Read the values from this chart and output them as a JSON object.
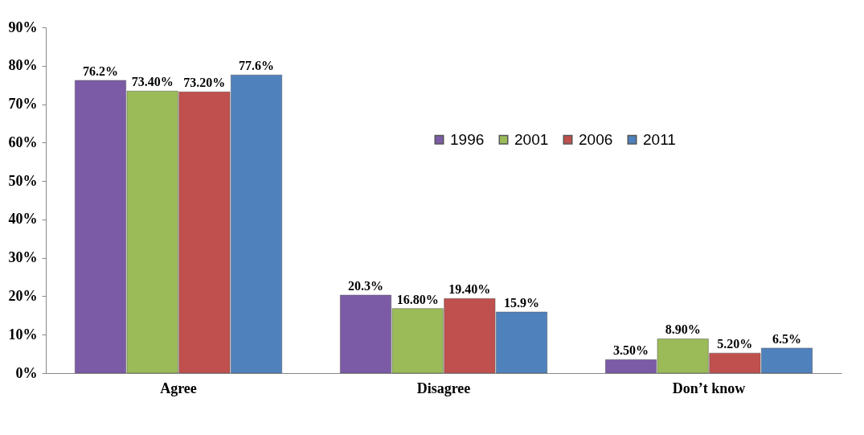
{
  "chart_data": {
    "type": "bar",
    "categories": [
      "Agree",
      "Disagree",
      "Don’t know"
    ],
    "series": [
      {
        "name": "1996",
        "color": "#7b5ba6",
        "values": [
          76.2,
          20.3,
          3.5
        ],
        "value_labels": [
          "76.2%",
          "20.3%",
          "3.50%"
        ]
      },
      {
        "name": "2001",
        "color": "#9bbb59",
        "values": [
          73.4,
          16.8,
          8.9
        ],
        "value_labels": [
          "73.40%",
          "16.80%",
          "8.90%"
        ]
      },
      {
        "name": "2006",
        "color": "#c0504d",
        "values": [
          73.2,
          19.4,
          5.2
        ],
        "value_labels": [
          "73.20%",
          "19.40%",
          "5.20%"
        ]
      },
      {
        "name": "2011",
        "color": "#4f81bd",
        "values": [
          77.6,
          15.9,
          6.5
        ],
        "value_labels": [
          "77.6%",
          "15.9%",
          "6.5%"
        ]
      }
    ],
    "ylim": [
      0,
      90
    ],
    "yticks": [
      {
        "value": 0,
        "label": "0%"
      },
      {
        "value": 10,
        "label": "10%"
      },
      {
        "value": 20,
        "label": "20%"
      },
      {
        "value": 30,
        "label": "30%"
      },
      {
        "value": 40,
        "label": "40%"
      },
      {
        "value": 50,
        "label": "50%"
      },
      {
        "value": 60,
        "label": "60%"
      },
      {
        "value": 70,
        "label": "70%"
      },
      {
        "value": 80,
        "label": "80%"
      },
      {
        "value": 90,
        "label": "90%"
      }
    ],
    "grid": false,
    "legend": "top right"
  }
}
